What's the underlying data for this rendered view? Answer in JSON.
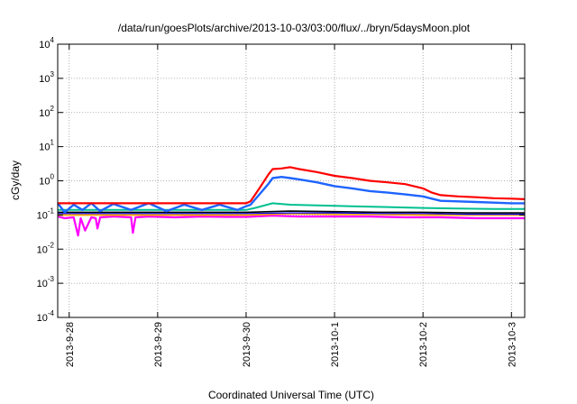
{
  "chart_data": {
    "type": "line",
    "title": "/data/run/goesPlots/archive/2013-10-03/03:00/flux/../bryn/5daysMoon.plot",
    "xlabel": "Coordinated Universal Time (UTC)",
    "ylabel": "cGy/day",
    "yscale": "log",
    "xlim": [
      -0.13,
      5.15
    ],
    "ylim": [
      0.0001,
      10000
    ],
    "grid": true,
    "x_ticks": [
      {
        "x": 0,
        "label": "2013-9-28"
      },
      {
        "x": 1,
        "label": "2013-9-29"
      },
      {
        "x": 2,
        "label": "2013-9-30"
      },
      {
        "x": 3,
        "label": "2013-10-1"
      },
      {
        "x": 4,
        "label": "2013-10-2"
      },
      {
        "x": 5,
        "label": "2013-10-3"
      }
    ],
    "y_ticks": [
      {
        "value": 0.0001,
        "base": "10",
        "exp": "-4"
      },
      {
        "value": 0.001,
        "base": "10",
        "exp": "-3"
      },
      {
        "value": 0.01,
        "base": "10",
        "exp": "-2"
      },
      {
        "value": 0.1,
        "base": "10",
        "exp": "-1"
      },
      {
        "value": 1,
        "base": "10",
        "exp": "0"
      },
      {
        "value": 10,
        "base": "10",
        "exp": "1"
      },
      {
        "value": 100,
        "base": "10",
        "exp": "2"
      },
      {
        "value": 1000,
        "base": "10",
        "exp": "3"
      },
      {
        "value": 10000,
        "base": "10",
        "exp": "4"
      }
    ],
    "series": [
      {
        "color": "#ff00ff",
        "width": 2.2,
        "x": [
          -0.13,
          -0.05,
          0.05,
          0.1,
          0.13,
          0.18,
          0.25,
          0.3,
          0.32,
          0.35,
          0.5,
          0.7,
          0.72,
          0.75,
          0.9,
          1.2,
          1.5,
          1.8,
          2.0,
          2.3,
          2.6,
          3.0,
          3.4,
          3.8,
          4.2,
          4.6,
          5.0,
          5.15
        ],
        "y": [
          0.09,
          0.08,
          0.085,
          0.025,
          0.08,
          0.035,
          0.085,
          0.08,
          0.04,
          0.085,
          0.09,
          0.085,
          0.03,
          0.085,
          0.09,
          0.085,
          0.09,
          0.088,
          0.088,
          0.095,
          0.09,
          0.09,
          0.09,
          0.085,
          0.085,
          0.08,
          0.08,
          0.08
        ]
      },
      {
        "color": "#ffa500",
        "width": 2.0,
        "x": [
          -0.13,
          0.5,
          1.0,
          1.5,
          2.0,
          2.5,
          3.0,
          3.5,
          4.0,
          4.5,
          5.0,
          5.15
        ],
        "y": [
          0.1,
          0.1,
          0.1,
          0.1,
          0.1,
          0.11,
          0.105,
          0.105,
          0.1,
          0.1,
          0.1,
          0.1
        ]
      },
      {
        "color": "#000000",
        "width": 1.6,
        "x": [
          -0.13,
          0.5,
          1.0,
          1.5,
          2.0,
          2.5,
          3.0,
          3.5,
          4.0,
          4.5,
          5.0,
          5.15
        ],
        "y": [
          0.12,
          0.12,
          0.12,
          0.12,
          0.12,
          0.13,
          0.125,
          0.12,
          0.12,
          0.115,
          0.115,
          0.115
        ]
      },
      {
        "color": "#00c090",
        "width": 2.0,
        "x": [
          -0.13,
          0.5,
          1.0,
          1.5,
          2.0,
          2.1,
          2.3,
          2.5,
          2.8,
          3.2,
          3.6,
          4.0,
          4.4,
          4.8,
          5.15
        ],
        "y": [
          0.14,
          0.14,
          0.14,
          0.14,
          0.14,
          0.16,
          0.22,
          0.2,
          0.19,
          0.18,
          0.17,
          0.16,
          0.155,
          0.15,
          0.15
        ]
      },
      {
        "color": "#0000ff",
        "width": 1.2,
        "x": [
          -0.13,
          0.5,
          1.0,
          1.5,
          2.0,
          2.5,
          3.0,
          3.5,
          4.0,
          4.5,
          5.0,
          5.15
        ],
        "y": [
          0.11,
          0.11,
          0.11,
          0.11,
          0.11,
          0.115,
          0.115,
          0.11,
          0.11,
          0.105,
          0.105,
          0.105
        ]
      },
      {
        "color": "#1e64ff",
        "width": 2.4,
        "x": [
          -0.13,
          -0.05,
          0.05,
          0.15,
          0.25,
          0.35,
          0.5,
          0.7,
          0.9,
          1.1,
          1.3,
          1.5,
          1.7,
          1.9,
          2.0,
          2.05,
          2.15,
          2.25,
          2.3,
          2.4,
          2.5,
          2.6,
          2.8,
          3.0,
          3.2,
          3.4,
          3.6,
          3.8,
          4.0,
          4.1,
          4.2,
          4.4,
          4.6,
          4.8,
          5.0,
          5.15
        ],
        "y": [
          0.22,
          0.12,
          0.2,
          0.14,
          0.22,
          0.13,
          0.21,
          0.14,
          0.22,
          0.13,
          0.2,
          0.14,
          0.2,
          0.14,
          0.18,
          0.2,
          0.4,
          0.8,
          1.2,
          1.3,
          1.2,
          1.1,
          0.9,
          0.7,
          0.6,
          0.5,
          0.45,
          0.4,
          0.35,
          0.3,
          0.26,
          0.25,
          0.24,
          0.23,
          0.22,
          0.22
        ]
      },
      {
        "color": "#ff0000",
        "width": 2.2,
        "x": [
          -0.13,
          0.0,
          0.5,
          1.0,
          1.5,
          1.9,
          2.0,
          2.05,
          2.15,
          2.25,
          2.3,
          2.4,
          2.5,
          2.6,
          2.8,
          3.0,
          3.2,
          3.4,
          3.6,
          3.8,
          4.0,
          4.1,
          4.2,
          4.4,
          4.6,
          4.8,
          5.0,
          5.15
        ],
        "y": [
          0.22,
          0.22,
          0.22,
          0.22,
          0.22,
          0.22,
          0.22,
          0.25,
          0.6,
          1.5,
          2.2,
          2.3,
          2.5,
          2.2,
          1.8,
          1.4,
          1.2,
          1.0,
          0.9,
          0.8,
          0.6,
          0.45,
          0.38,
          0.35,
          0.33,
          0.31,
          0.3,
          0.29
        ]
      }
    ]
  }
}
